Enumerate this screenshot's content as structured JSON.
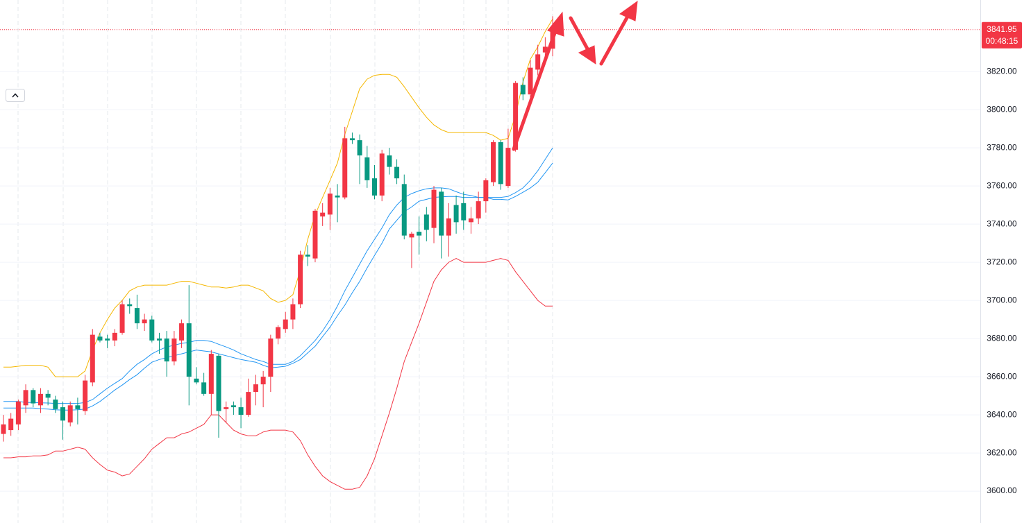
{
  "chart_data": {
    "type": "candlestick",
    "open": [
      3630,
      3632,
      3635,
      3645,
      3653,
      3645,
      3651,
      3648,
      3644,
      3636,
      3645,
      3642,
      3657,
      3681,
      3680,
      3679,
      3683,
      3698,
      3696,
      3688,
      3690,
      3680,
      3680,
      3668,
      3679,
      3688,
      3659,
      3657,
      3651,
      3671,
      3643,
      3645,
      3644,
      3640,
      3652,
      3656,
      3660,
      3680,
      3685,
      3690,
      3698,
      3724,
      3722,
      3744,
      3745,
      3755,
      3754,
      3785,
      3784,
      3775,
      3764,
      3755,
      3776,
      3770,
      3761,
      3733,
      3736,
      3745,
      3738,
      3757,
      3734,
      3750,
      3751,
      3741,
      3743,
      3752,
      3762,
      3783,
      3760,
      3779,
      3813,
      3808,
      3821,
      3830,
      3832
    ],
    "high": [
      3640,
      3641,
      3648,
      3656,
      3654,
      3654,
      3653,
      3650,
      3647,
      3647,
      3649,
      3661,
      3685,
      3683,
      3682,
      3685,
      3700,
      3701,
      3703,
      3693,
      3692,
      3683,
      3684,
      3684,
      3690,
      3708,
      3665,
      3662,
      3674,
      3672,
      3647,
      3647,
      3649,
      3659,
      3661,
      3663,
      3682,
      3687,
      3694,
      3701,
      3726,
      3729,
      3748,
      3751,
      3759,
      3761,
      3791,
      3788,
      3787,
      3781,
      3771,
      3779,
      3780,
      3774,
      3766,
      3736,
      3744,
      3749,
      3760,
      3759,
      3751,
      3755,
      3757,
      3749,
      3757,
      3764,
      3784,
      3784,
      3790,
      3815,
      3817,
      3826,
      3834,
      3838,
      3849
    ],
    "low": [
      3626,
      3629,
      3632,
      3641,
      3644,
      3641,
      3645,
      3641,
      3627,
      3634,
      3635,
      3640,
      3655,
      3678,
      3675,
      3676,
      3682,
      3693,
      3685,
      3684,
      3678,
      3672,
      3660,
      3666,
      3675,
      3645,
      3656,
      3650,
      3640,
      3628,
      3636,
      3640,
      3633,
      3639,
      3645,
      3644,
      3652,
      3677,
      3683,
      3685,
      3696,
      3718,
      3720,
      3739,
      3737,
      3741,
      3753,
      3782,
      3761,
      3759,
      3753,
      3752,
      3766,
      3761,
      3732,
      3717,
      3724,
      3731,
      3730,
      3722,
      3723,
      3735,
      3737,
      3735,
      3740,
      3746,
      3760,
      3758,
      3759,
      3778,
      3805,
      3806,
      3818,
      3824,
      3828
    ],
    "close": [
      3635,
      3638,
      3647,
      3653,
      3646,
      3651,
      3649,
      3643,
      3637,
      3645,
      3643,
      3658,
      3682,
      3679,
      3679,
      3683,
      3698,
      3697,
      3688,
      3690,
      3679,
      3679,
      3668,
      3680,
      3688,
      3660,
      3657,
      3651,
      3672,
      3642,
      3644,
      3644,
      3640,
      3652,
      3656,
      3660,
      3680,
      3686,
      3690,
      3698,
      3724,
      3723,
      3747,
      3746,
      3756,
      3754,
      3785,
      3784,
      3776,
      3763,
      3755,
      3777,
      3770,
      3764,
      3734,
      3735,
      3734,
      3737,
      3758,
      3734,
      3743,
      3741,
      3742,
      3743,
      3752,
      3763,
      3783,
      3761,
      3780,
      3814,
      3808,
      3822,
      3829,
      3833,
      3842
    ],
    "up_color": "#f23645",
    "down_color": "#089981",
    "series": [
      {
        "color": "#f5b700",
        "values": [
          3665,
          3665,
          3665.5,
          3666,
          3666,
          3666,
          3665,
          3660,
          3660,
          3660,
          3660,
          3663,
          3674,
          3683,
          3690,
          3696,
          3700,
          3705,
          3707,
          3708,
          3708,
          3708,
          3708,
          3709,
          3710,
          3710,
          3709,
          3708,
          3707,
          3707,
          3706.5,
          3707,
          3708,
          3708,
          3706.5,
          3705,
          3701,
          3699,
          3700,
          3703,
          3716,
          3732,
          3745,
          3754,
          3763,
          3772,
          3787,
          3799,
          3811,
          3816,
          3818,
          3818.5,
          3818.5,
          3817,
          3812,
          3806.5,
          3801,
          3796,
          3792,
          3789.5,
          3788,
          3788,
          3788,
          3788,
          3788,
          3788,
          3786.5,
          3784,
          3785,
          3797,
          3814.5,
          3826.5,
          3833,
          3841,
          3847.6
        ]
      },
      {
        "color": "#f23645",
        "values": [
          3617.5,
          3617.5,
          3618,
          3618,
          3618.5,
          3618.5,
          3619,
          3621,
          3621,
          3622,
          3623,
          3622,
          3617.5,
          3614,
          3611,
          3610,
          3608,
          3609,
          3613,
          3617,
          3622,
          3625,
          3628,
          3628,
          3630,
          3631,
          3633,
          3635,
          3640,
          3640,
          3636,
          3632,
          3630,
          3629,
          3629,
          3631,
          3632,
          3632,
          3632,
          3631,
          3626.5,
          3619,
          3613,
          3608,
          3605,
          3603,
          3601,
          3601,
          3602,
          3608,
          3617,
          3629,
          3641,
          3654,
          3668,
          3678,
          3688,
          3699,
          3710,
          3716,
          3720,
          3722,
          3720,
          3720,
          3720,
          3720,
          3721,
          3722,
          3721,
          3715,
          3710,
          3705,
          3700,
          3697,
          3697
        ]
      },
      {
        "color": "#2196f3",
        "values": [
          3647,
          3647,
          3647,
          3646.5,
          3646.5,
          3646.3,
          3646.2,
          3646,
          3646,
          3646,
          3646,
          3646.5,
          3648,
          3651,
          3654,
          3656.5,
          3659,
          3663,
          3666.5,
          3669,
          3672,
          3674,
          3675.6,
          3676.5,
          3677.5,
          3678,
          3679,
          3679,
          3678.5,
          3677,
          3675.6,
          3674,
          3672,
          3670.5,
          3669,
          3668,
          3666.5,
          3666.5,
          3666.5,
          3668,
          3671,
          3675,
          3679,
          3684,
          3690,
          3697,
          3705,
          3712,
          3719,
          3726,
          3732,
          3738,
          3745,
          3750,
          3754,
          3756,
          3757.5,
          3758.5,
          3759,
          3759,
          3758.5,
          3757,
          3755.6,
          3755,
          3754,
          3754,
          3754,
          3754,
          3754.5,
          3756.5,
          3759,
          3763,
          3768,
          3774,
          3780
        ]
      },
      {
        "color": "#2196f3",
        "values": [
          3643.6,
          3643.6,
          3643.6,
          3643.6,
          3643.6,
          3643.2,
          3643,
          3642.7,
          3642.5,
          3642.5,
          3642.7,
          3643,
          3644.7,
          3647,
          3650,
          3653,
          3655.6,
          3658.5,
          3661,
          3664.5,
          3667.6,
          3669,
          3670,
          3671,
          3672,
          3673,
          3674,
          3673.5,
          3673,
          3672,
          3671,
          3670,
          3669,
          3668.3,
          3667.6,
          3666,
          3664.7,
          3665,
          3665.5,
          3667,
          3669,
          3672.5,
          3676,
          3681,
          3686,
          3692,
          3697.5,
          3704,
          3710,
          3717,
          3723.6,
          3730,
          3737.5,
          3742,
          3746.5,
          3749,
          3752,
          3753,
          3754,
          3754.3,
          3754.5,
          3754.5,
          3754,
          3754,
          3754,
          3754,
          3753,
          3753,
          3752.7,
          3754.5,
          3756.7,
          3759,
          3762,
          3767,
          3772
        ]
      }
    ],
    "ylim": [
      3583.3,
      3857.5
    ],
    "yticks": [
      {
        "value": 3600,
        "label": "3600.00"
      },
      {
        "value": 3620,
        "label": "3620.00"
      },
      {
        "value": 3640,
        "label": "3640.00"
      },
      {
        "value": 3660,
        "label": "3660.00"
      },
      {
        "value": 3680,
        "label": "3680.00"
      },
      {
        "value": 3700,
        "label": "3700.00"
      },
      {
        "value": 3720,
        "label": "3720.00"
      },
      {
        "value": 3740,
        "label": "3740.00"
      },
      {
        "value": 3760,
        "label": "3760.00"
      },
      {
        "value": 3780,
        "label": "3780.00"
      },
      {
        "value": 3800,
        "label": "3800.00"
      },
      {
        "value": 3820,
        "label": "3820.00"
      }
    ],
    "grid": true,
    "last_price": 3841.95,
    "countdown": "00:48:15"
  }
}
